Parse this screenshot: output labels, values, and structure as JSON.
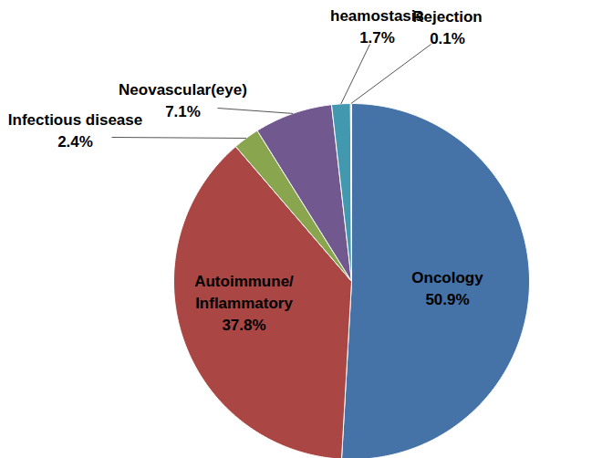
{
  "chart_data": {
    "type": "pie",
    "categories": [
      "Oncology",
      "Autoimmune/\nInflammatory",
      "Infectious disease",
      "Neovascular(eye)",
      "heamostasis",
      "Rejection"
    ],
    "values": [
      50.9,
      37.8,
      2.4,
      7.1,
      1.7,
      0.1
    ],
    "value_labels": [
      "50.9%",
      "37.8%",
      "2.4%",
      "7.1%",
      "1.7%",
      "0.1%"
    ],
    "colors": [
      "#4572A7",
      "#AA4643",
      "#89A54E",
      "#71588F",
      "#4198AF",
      "#DB843D"
    ],
    "data_labels": true
  }
}
